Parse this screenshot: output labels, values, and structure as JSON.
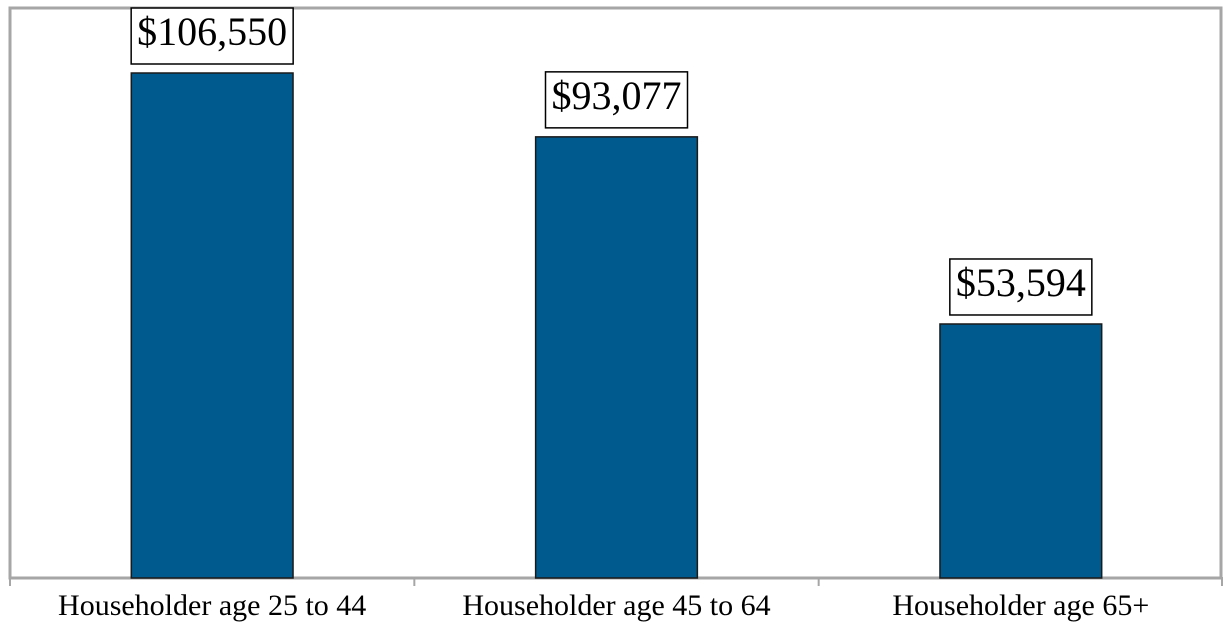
{
  "chart_data": {
    "type": "bar",
    "categories": [
      "Householder age 25 to 44",
      "Householder age 45 to 64",
      "Householder age 65+"
    ],
    "values": [
      106550,
      93077,
      53594
    ],
    "value_labels": [
      "$106,550",
      "$93,077",
      "$53,594"
    ],
    "color": "#005a8e"
  }
}
